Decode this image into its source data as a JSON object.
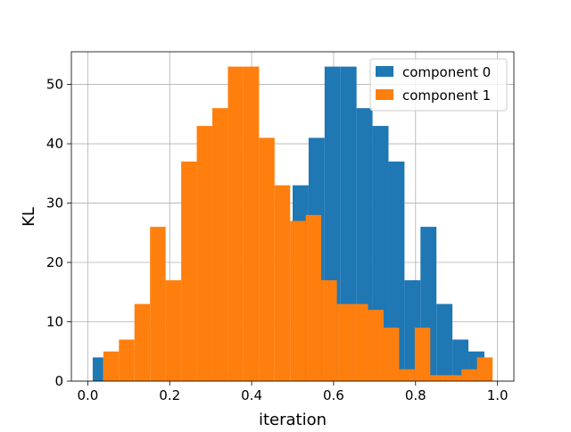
{
  "chart_data": {
    "type": "bar",
    "title": "",
    "xlabel": "iteration",
    "ylabel": "KL",
    "xlim": [
      -0.04,
      1.04
    ],
    "ylim": [
      0,
      55.5
    ],
    "grid": true,
    "legend_position": "top-right",
    "xticks": [
      0.0,
      0.2,
      0.4,
      0.6,
      0.8,
      1.0
    ],
    "xtick_labels": [
      "0.0",
      "0.2",
      "0.4",
      "0.6",
      "0.8",
      "1.0"
    ],
    "yticks": [
      0,
      10,
      20,
      30,
      40,
      50
    ],
    "ytick_labels": [
      "0",
      "10",
      "20",
      "30",
      "40",
      "50"
    ],
    "bin_edges": [
      0.0,
      0.038,
      0.076,
      0.114,
      0.152,
      0.19,
      0.228,
      0.266,
      0.304,
      0.342,
      0.38,
      0.418,
      0.456,
      0.494,
      0.532,
      0.57,
      0.608,
      0.646,
      0.684,
      0.722,
      0.76,
      0.798,
      0.836,
      0.874,
      0.912,
      0.95,
      0.988
    ],
    "series": [
      {
        "name": "component 0",
        "color": "#1f77b4",
        "bins": [
          {
            "x0": 0.012,
            "x1": 0.038,
            "value": 4
          },
          {
            "x0": 0.5,
            "x1": 0.539,
            "value": 33
          },
          {
            "x0": 0.539,
            "x1": 0.578,
            "value": 41
          },
          {
            "x0": 0.578,
            "x1": 0.617,
            "value": 53
          },
          {
            "x0": 0.617,
            "x1": 0.656,
            "value": 53
          },
          {
            "x0": 0.656,
            "x1": 0.695,
            "value": 46
          },
          {
            "x0": 0.695,
            "x1": 0.734,
            "value": 43
          },
          {
            "x0": 0.734,
            "x1": 0.773,
            "value": 37
          },
          {
            "x0": 0.773,
            "x1": 0.812,
            "value": 17
          },
          {
            "x0": 0.812,
            "x1": 0.851,
            "value": 26
          },
          {
            "x0": 0.851,
            "x1": 0.89,
            "value": 13
          },
          {
            "x0": 0.89,
            "x1": 0.929,
            "value": 7
          },
          {
            "x0": 0.929,
            "x1": 0.968,
            "value": 5
          }
        ]
      },
      {
        "name": "component 1",
        "color": "#ff7f0e",
        "bins": [
          {
            "x0": 0.038,
            "x1": 0.076,
            "value": 5
          },
          {
            "x0": 0.076,
            "x1": 0.114,
            "value": 7
          },
          {
            "x0": 0.114,
            "x1": 0.152,
            "value": 13
          },
          {
            "x0": 0.152,
            "x1": 0.19,
            "value": 26
          },
          {
            "x0": 0.19,
            "x1": 0.228,
            "value": 17
          },
          {
            "x0": 0.228,
            "x1": 0.266,
            "value": 37
          },
          {
            "x0": 0.266,
            "x1": 0.304,
            "value": 43
          },
          {
            "x0": 0.304,
            "x1": 0.342,
            "value": 46
          },
          {
            "x0": 0.342,
            "x1": 0.38,
            "value": 53
          },
          {
            "x0": 0.38,
            "x1": 0.418,
            "value": 53
          },
          {
            "x0": 0.418,
            "x1": 0.456,
            "value": 41
          },
          {
            "x0": 0.456,
            "x1": 0.494,
            "value": 33
          },
          {
            "x0": 0.494,
            "x1": 0.532,
            "value": 27
          },
          {
            "x0": 0.532,
            "x1": 0.57,
            "value": 28
          },
          {
            "x0": 0.57,
            "x1": 0.608,
            "value": 17
          },
          {
            "x0": 0.608,
            "x1": 0.646,
            "value": 13
          },
          {
            "x0": 0.646,
            "x1": 0.684,
            "value": 13
          },
          {
            "x0": 0.684,
            "x1": 0.722,
            "value": 12
          },
          {
            "x0": 0.722,
            "x1": 0.76,
            "value": 9
          },
          {
            "x0": 0.76,
            "x1": 0.798,
            "value": 2
          },
          {
            "x0": 0.798,
            "x1": 0.836,
            "value": 9
          },
          {
            "x0": 0.836,
            "x1": 0.874,
            "value": 1
          },
          {
            "x0": 0.874,
            "x1": 0.912,
            "value": 1
          },
          {
            "x0": 0.912,
            "x1": 0.95,
            "value": 2
          },
          {
            "x0": 0.95,
            "x1": 0.988,
            "value": 4
          }
        ]
      }
    ]
  }
}
